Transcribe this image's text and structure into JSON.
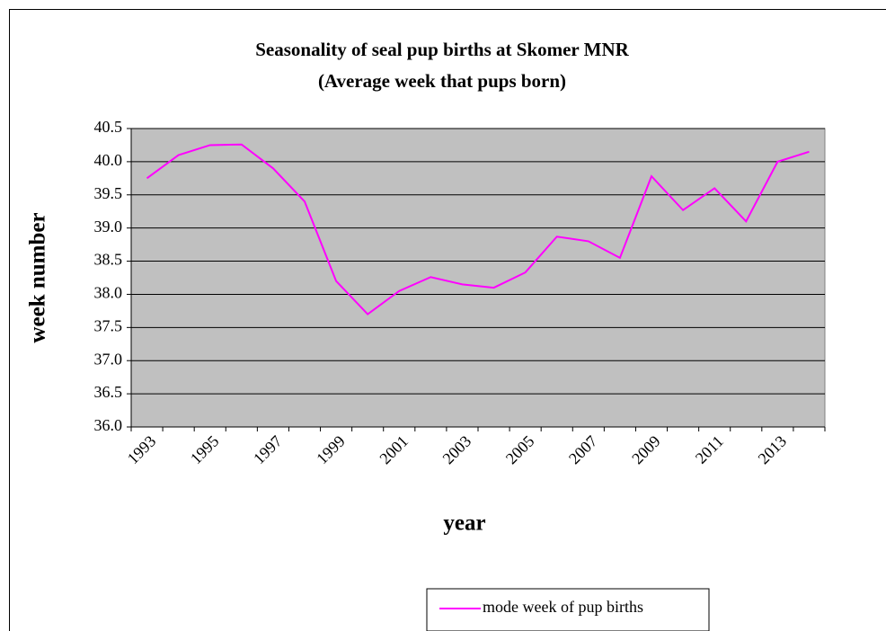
{
  "chart_data": {
    "type": "line",
    "title": "Seasonality of seal pup births at Skomer MNR",
    "subtitle": "(Average week that pups born)",
    "x_label": "year",
    "y_label": "week number",
    "categories": [
      "1993",
      null,
      "1995",
      null,
      "1997",
      null,
      "1999",
      null,
      "2001",
      null,
      "2003",
      null,
      "2005",
      null,
      "2007",
      null,
      "2009",
      null,
      "2011",
      null,
      "2013",
      null
    ],
    "series": [
      {
        "name": "mode week of pup births",
        "color": "#ff00ff",
        "values": [
          39.75,
          40.1,
          40.25,
          40.26,
          39.9,
          39.4,
          38.2,
          37.7,
          38.05,
          38.26,
          38.15,
          38.1,
          38.33,
          38.87,
          38.8,
          38.55,
          39.78,
          39.27,
          39.6,
          39.1,
          40.0,
          40.15
        ]
      }
    ],
    "ylim": [
      36,
      40.5
    ],
    "yticks": [
      {
        "value": 36,
        "label": "36.0"
      },
      36.5,
      {
        "value": 37,
        "label": "37.0"
      },
      37.5,
      {
        "value": 38,
        "label": "38.0"
      },
      38.5,
      {
        "value": 39,
        "label": "39.0"
      },
      39.5,
      {
        "value": 40,
        "label": "40.0"
      },
      40.5
    ],
    "grid": true,
    "plot_background": "#c0c0c0",
    "legend": "bottom"
  }
}
